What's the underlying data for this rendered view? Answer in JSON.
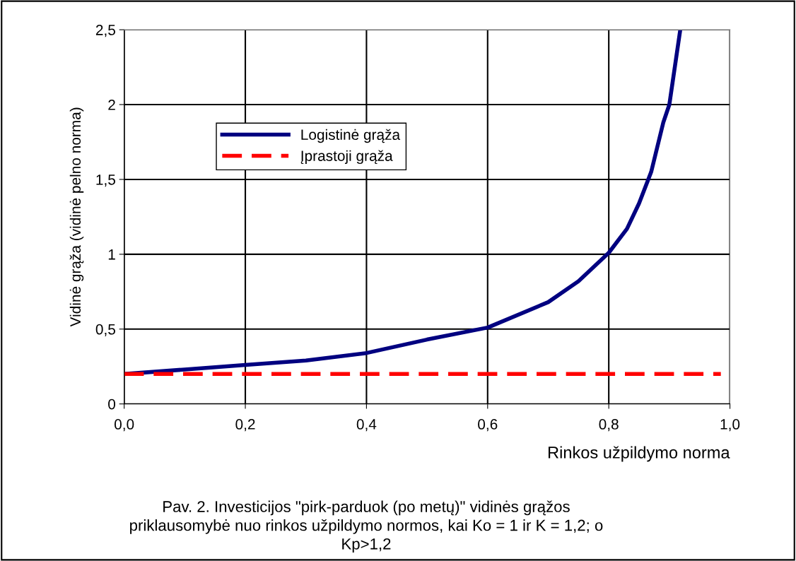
{
  "chart_data": {
    "type": "line",
    "xlabel": "Rinkos užpildymo norma",
    "ylabel": "Vidinė grąža (vidinė pelno norma)",
    "annotations": [
      "Pav. 2. Investicijos \"pirk-parduok (po metų)\" vidinės grąžos\npriklausomybė nuo rinkos užpildymo normos, kai Ko = 1 ir K = 1,2; o\nKp>1,2"
    ],
    "series": [
      {
        "name": "Logistinė grąža",
        "color": "#000080",
        "line_style": "solid",
        "x": [
          0,
          0.1,
          0.2,
          0.3,
          0.4,
          0.5,
          0.6,
          0.7,
          0.75,
          0.8,
          0.83,
          0.85,
          0.87,
          0.89,
          0.9,
          0.918
        ],
        "values": [
          0.2,
          0.23,
          0.26,
          0.29,
          0.34,
          0.43,
          0.51,
          0.68,
          0.82,
          1.01,
          1.17,
          1.34,
          1.55,
          1.88,
          2.0,
          2.5
        ]
      },
      {
        "name": "Įprastoji grąža",
        "color": "#ff0000",
        "line_style": "dashed",
        "x": [
          0,
          0.985
        ],
        "values": [
          0.2,
          0.2
        ]
      }
    ],
    "xlim": [
      0,
      1
    ],
    "ylim": [
      0,
      2.5
    ],
    "xticks": [
      {
        "value": 0,
        "label": "0,0"
      },
      {
        "value": 0.2,
        "label": "0,2"
      },
      {
        "value": 0.4,
        "label": "0,4"
      },
      {
        "value": 0.6,
        "label": "0,6"
      },
      {
        "value": 0.8,
        "label": "0,8"
      },
      {
        "value": 1,
        "label": "1,0"
      }
    ],
    "yticks": [
      0,
      {
        "value": 0.5,
        "label": "0,5"
      },
      1,
      {
        "value": 1.5,
        "label": "1,5"
      },
      2,
      {
        "value": 2.5,
        "label": "2,5"
      }
    ],
    "grid": true,
    "legend": "top left",
    "marker": "none"
  }
}
